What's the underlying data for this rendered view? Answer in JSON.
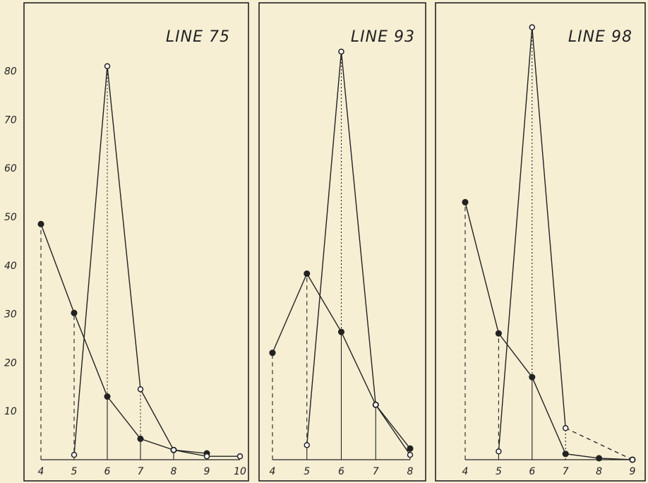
{
  "colors": {
    "background": "#f6efd4",
    "ink": "#222222"
  },
  "chart_data": [
    {
      "type": "line",
      "title": "LINE 75",
      "x_ticks": [
        "4",
        "5",
        "6",
        "7",
        "8",
        "9",
        "10"
      ],
      "y_ticks": [
        "10",
        "20",
        "30",
        "40",
        "50",
        "60",
        "70",
        "80"
      ],
      "ylim": [
        0,
        90
      ],
      "series": [
        {
          "marker": "filled",
          "x": [
            4,
            5,
            6,
            7,
            8,
            9
          ],
          "values": [
            48.5,
            30.2,
            13,
            4.3,
            2,
            1.3
          ]
        },
        {
          "marker": "open",
          "x": [
            5,
            6,
            7,
            8,
            9,
            10
          ],
          "values": [
            1,
            81,
            14.5,
            2,
            0.7,
            0.7
          ]
        }
      ]
    },
    {
      "type": "line",
      "title": "LINE 93",
      "x_ticks": [
        "4",
        "5",
        "6",
        "7",
        "8"
      ],
      "y_ticks": [],
      "ylim": [
        0,
        90
      ],
      "series": [
        {
          "marker": "filled",
          "x": [
            4,
            5,
            6,
            7,
            8
          ],
          "values": [
            22,
            38.3,
            26.3,
            11.3,
            2.3
          ]
        },
        {
          "marker": "open",
          "x": [
            5,
            6,
            7,
            8
          ],
          "values": [
            3,
            84,
            11.3,
            1
          ]
        }
      ]
    },
    {
      "type": "line",
      "title": "LINE 98",
      "x_ticks": [
        "4",
        "5",
        "6",
        "7",
        "8",
        "9"
      ],
      "y_ticks": [],
      "ylim": [
        0,
        90
      ],
      "series": [
        {
          "marker": "filled",
          "x": [
            4,
            5,
            6,
            7,
            8,
            9
          ],
          "values": [
            53,
            26,
            17,
            1.2,
            0.3,
            0
          ]
        },
        {
          "marker": "open",
          "x": [
            5,
            6,
            7,
            9
          ],
          "values": [
            1.7,
            89,
            6.5,
            0
          ]
        }
      ]
    }
  ]
}
